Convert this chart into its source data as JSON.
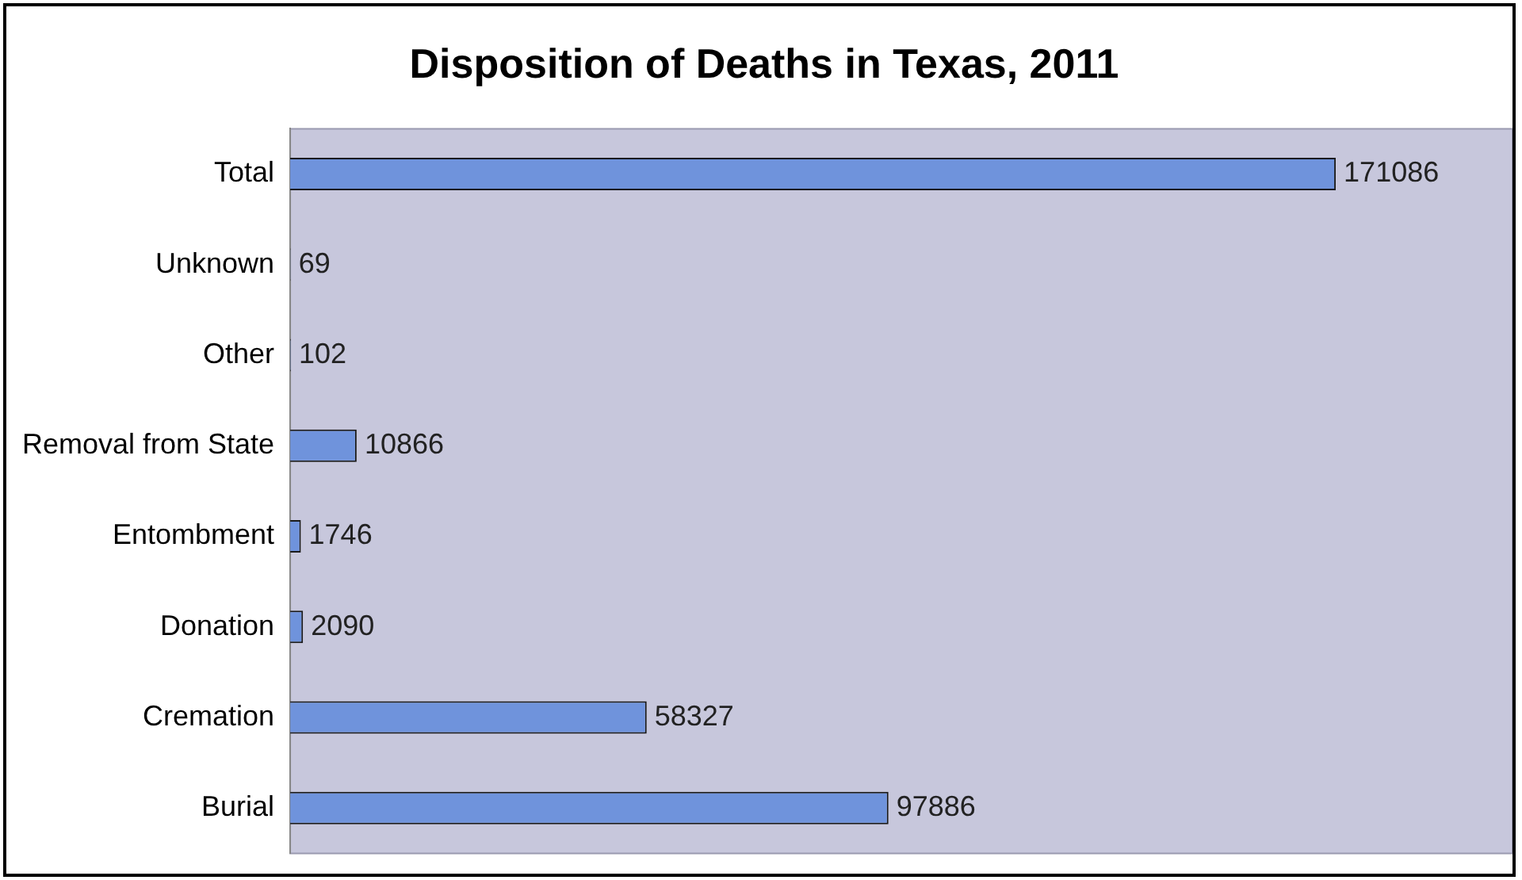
{
  "chart_data": {
    "type": "bar",
    "orientation": "horizontal",
    "title": "Disposition of Deaths in Texas, 2011",
    "categories": [
      "Total",
      "Unknown",
      "Other",
      "Removal from State",
      "Entombment",
      "Donation",
      "Cremation",
      "Burial"
    ],
    "values": [
      171086,
      69,
      102,
      10866,
      1746,
      2090,
      58327,
      97886
    ],
    "color": "#6f93dc",
    "data_labels": true,
    "tick_labels": "y",
    "grid": false,
    "legend": false
  }
}
